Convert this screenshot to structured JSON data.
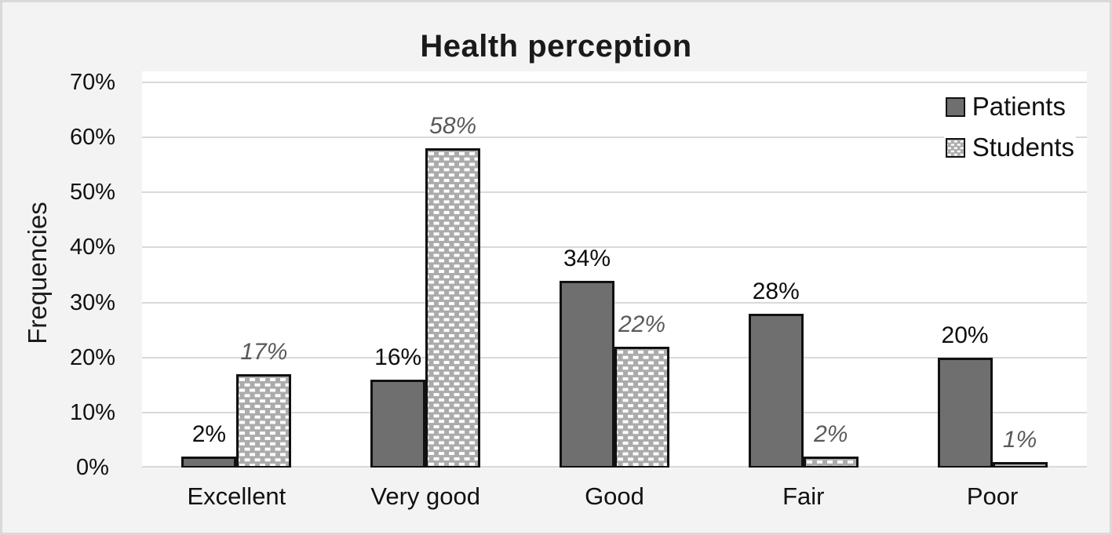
{
  "chart_data": {
    "type": "bar",
    "title": "Health perception",
    "ylabel": "Frequencies",
    "xlabel": "",
    "categories": [
      "Excellent",
      "Very good",
      "Good",
      "Fair",
      "Poor"
    ],
    "series": [
      {
        "name": "Patients",
        "values": [
          2,
          16,
          34,
          28,
          20
        ],
        "data_labels": [
          "2%",
          "16%",
          "34%",
          "28%",
          "20%"
        ],
        "color": "#6f6f6f",
        "fill_style": "solid",
        "label_style": "black-regular"
      },
      {
        "name": "Students",
        "values": [
          17,
          58,
          22,
          2,
          1
        ],
        "data_labels": [
          "17%",
          "58%",
          "22%",
          "2%",
          "1%"
        ],
        "color": "#ababab",
        "dash_color": "#ffffff",
        "fill_style": "checkered-white-dashes",
        "label_style": "gray-italic",
        "label_color": "#595959"
      }
    ],
    "ylim": [
      0,
      70
    ],
    "yticks": [
      "0%",
      "10%",
      "20%",
      "30%",
      "40%",
      "50%",
      "60%",
      "70%"
    ],
    "grid": true,
    "gridline_color": "#d9d9d9",
    "legend_position": "top-right-inside",
    "background_color": "#f3f3f3",
    "plot_background": "#ffffff"
  }
}
